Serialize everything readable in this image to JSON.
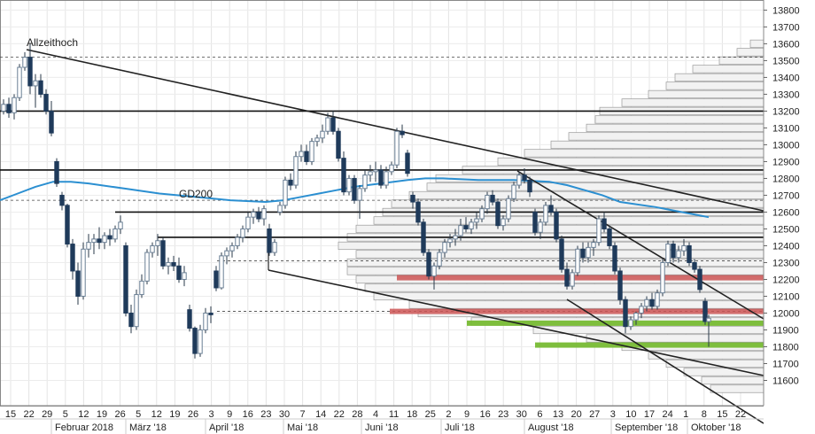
{
  "chart_data": {
    "type": "candlestick",
    "y_axis": {
      "ylim": [
        11450,
        13860
      ],
      "ticks": [
        11600,
        11700,
        11800,
        11900,
        12000,
        12100,
        12200,
        12300,
        12400,
        12500,
        12600,
        12700,
        12800,
        12900,
        13000,
        13100,
        13200,
        13300,
        13400,
        13500,
        13600,
        13700,
        13800
      ]
    },
    "x_axis": {
      "day_ticks": [
        "15",
        "22",
        "29",
        "5",
        "12",
        "19",
        "26",
        "5",
        "12",
        "19",
        "26",
        "3",
        "9",
        "16",
        "23",
        "30",
        "7",
        "14",
        "22",
        "28",
        "4",
        "11",
        "18",
        "25",
        "2",
        "9",
        "16",
        "23",
        "30",
        "6",
        "13",
        "20",
        "27",
        "3",
        "10",
        "17",
        "24",
        "1",
        "8",
        "15",
        "22"
      ],
      "month_labels": [
        "Februar 2018",
        "März '18",
        "April '18",
        "Mai '18",
        "Juni '18",
        "Juli '18",
        "August '18",
        "September '18",
        "Oktober '18"
      ]
    },
    "annotations": [
      "Allzeithoch",
      "GD200"
    ],
    "horizontal_levels": [
      13200,
      12850,
      12600,
      12450
    ],
    "dashed_levels": [
      13520,
      12670,
      12310,
      12010
    ],
    "red_zones": [
      12210,
      12010
    ],
    "green_zones": [
      11940,
      11810
    ],
    "moving_average_gd200": [
      [
        0,
        12670
      ],
      [
        20,
        12710
      ],
      [
        40,
        12750
      ],
      [
        60,
        12780
      ],
      [
        80,
        12780
      ],
      [
        100,
        12770
      ],
      [
        140,
        12740
      ],
      [
        180,
        12710
      ],
      [
        220,
        12690
      ],
      [
        260,
        12670
      ],
      [
        300,
        12660
      ],
      [
        320,
        12670
      ],
      [
        340,
        12690
      ],
      [
        360,
        12710
      ],
      [
        380,
        12730
      ],
      [
        400,
        12750
      ],
      [
        430,
        12770
      ],
      [
        460,
        12790
      ],
      [
        480,
        12800
      ],
      [
        500,
        12800
      ],
      [
        540,
        12790
      ],
      [
        580,
        12790
      ],
      [
        620,
        12780
      ],
      [
        640,
        12760
      ],
      [
        680,
        12700
      ],
      [
        700,
        12660
      ],
      [
        740,
        12630
      ],
      [
        770,
        12600
      ],
      [
        800,
        12570
      ]
    ],
    "candles": [
      [
        4,
        13200,
        13270,
        13180,
        13240
      ],
      [
        10,
        13240,
        13280,
        13160,
        13190
      ],
      [
        16,
        13190,
        13300,
        13150,
        13280
      ],
      [
        22,
        13280,
        13480,
        13260,
        13460
      ],
      [
        28,
        13460,
        13550,
        13440,
        13520
      ],
      [
        34,
        13520,
        13600,
        13300,
        13350
      ],
      [
        40,
        13350,
        13420,
        13220,
        13380
      ],
      [
        46,
        13380,
        13420,
        13280,
        13300
      ],
      [
        52,
        13300,
        13330,
        13180,
        13200
      ],
      [
        58,
        13200,
        13260,
        13050,
        13070
      ],
      [
        64,
        12900,
        12920,
        12750,
        12770
      ],
      [
        70,
        12700,
        12720,
        12610,
        12640
      ],
      [
        76,
        12640,
        12650,
        12390,
        12410
      ],
      [
        82,
        12410,
        12440,
        12200,
        12250
      ],
      [
        88,
        12250,
        12300,
        12050,
        12100
      ],
      [
        94,
        12100,
        12420,
        12080,
        12380
      ],
      [
        100,
        12380,
        12470,
        12330,
        12420
      ],
      [
        106,
        12420,
        12470,
        12350,
        12440
      ],
      [
        112,
        12440,
        12510,
        12380,
        12420
      ],
      [
        118,
        12420,
        12480,
        12380,
        12460
      ],
      [
        124,
        12460,
        12500,
        12400,
        12440
      ],
      [
        130,
        12440,
        12520,
        12420,
        12500
      ],
      [
        136,
        12500,
        12580,
        12470,
        12540
      ],
      [
        142,
        12400,
        12420,
        11980,
        12000
      ],
      [
        148,
        12000,
        12050,
        11880,
        11920
      ],
      [
        154,
        11920,
        12140,
        11900,
        12110
      ],
      [
        160,
        12110,
        12230,
        12090,
        12190
      ],
      [
        166,
        12190,
        12380,
        12170,
        12360
      ],
      [
        172,
        12360,
        12420,
        12330,
        12400
      ],
      [
        178,
        12400,
        12470,
        12340,
        12430
      ],
      [
        184,
        12430,
        12450,
        12260,
        12280
      ],
      [
        190,
        12280,
        12330,
        12230,
        12300
      ],
      [
        196,
        12300,
        12340,
        12250,
        12280
      ],
      [
        202,
        12280,
        12330,
        12180,
        12200
      ],
      [
        208,
        12200,
        12280,
        12160,
        12240
      ],
      [
        214,
        12020,
        12050,
        11890,
        11910
      ],
      [
        220,
        11910,
        11920,
        11730,
        11760
      ],
      [
        226,
        11760,
        11930,
        11740,
        11900
      ],
      [
        232,
        11900,
        12030,
        11880,
        12000
      ],
      [
        238,
        12000,
        12040,
        11940,
        11990
      ],
      [
        244,
        12250,
        12280,
        12130,
        12150
      ],
      [
        250,
        12150,
        12360,
        12140,
        12340
      ],
      [
        256,
        12340,
        12390,
        12290,
        12370
      ],
      [
        262,
        12370,
        12420,
        12330,
        12400
      ],
      [
        268,
        12400,
        12470,
        12380,
        12450
      ],
      [
        274,
        12450,
        12520,
        12420,
        12500
      ],
      [
        280,
        12500,
        12600,
        12480,
        12570
      ],
      [
        286,
        12570,
        12620,
        12530,
        12600
      ],
      [
        292,
        12600,
        12630,
        12540,
        12560
      ],
      [
        298,
        12560,
        12640,
        12520,
        12620
      ],
      [
        304,
        12500,
        12530,
        12340,
        12360
      ],
      [
        310,
        12360,
        12440,
        12340,
        12420
      ],
      [
        316,
        12600,
        12660,
        12580,
        12640
      ],
      [
        322,
        12640,
        12810,
        12620,
        12790
      ],
      [
        328,
        12790,
        12830,
        12730,
        12760
      ],
      [
        334,
        12760,
        12960,
        12740,
        12930
      ],
      [
        340,
        12930,
        13000,
        12900,
        12960
      ],
      [
        346,
        12960,
        13000,
        12880,
        12900
      ],
      [
        352,
        12900,
        13040,
        12880,
        13020
      ],
      [
        358,
        13020,
        13060,
        12990,
        13040
      ],
      [
        364,
        13040,
        13120,
        13010,
        13080
      ],
      [
        370,
        13080,
        13190,
        13060,
        13160
      ],
      [
        376,
        13160,
        13200,
        13060,
        13080
      ],
      [
        382,
        13080,
        13100,
        12900,
        12920
      ],
      [
        388,
        12920,
        12960,
        12700,
        12720
      ],
      [
        394,
        12720,
        12820,
        12700,
        12800
      ],
      [
        400,
        12800,
        12820,
        12650,
        12670
      ],
      [
        406,
        12670,
        12760,
        12560,
        12740
      ],
      [
        412,
        12740,
        12850,
        12720,
        12820
      ],
      [
        418,
        12820,
        12880,
        12780,
        12840
      ],
      [
        424,
        12840,
        12900,
        12780,
        12850
      ],
      [
        430,
        12850,
        12880,
        12740,
        12760
      ],
      [
        436,
        12760,
        12870,
        12740,
        12840
      ],
      [
        442,
        12840,
        12900,
        12820,
        12880
      ],
      [
        448,
        12880,
        13100,
        12860,
        13080
      ],
      [
        454,
        13080,
        13120,
        13040,
        13060
      ],
      [
        460,
        12950,
        12970,
        12810,
        12830
      ],
      [
        466,
        12700,
        12720,
        12620,
        12660
      ],
      [
        472,
        12660,
        12680,
        12520,
        12540
      ],
      [
        478,
        12540,
        12560,
        12340,
        12360
      ],
      [
        484,
        12360,
        12380,
        12200,
        12220
      ],
      [
        490,
        12220,
        12300,
        12140,
        12280
      ],
      [
        496,
        12280,
        12380,
        12260,
        12360
      ],
      [
        502,
        12360,
        12440,
        12330,
        12420
      ],
      [
        508,
        12420,
        12470,
        12390,
        12440
      ],
      [
        514,
        12440,
        12500,
        12400,
        12460
      ],
      [
        520,
        12460,
        12560,
        12430,
        12520
      ],
      [
        526,
        12520,
        12570,
        12480,
        12500
      ],
      [
        532,
        12500,
        12560,
        12470,
        12540
      ],
      [
        538,
        12540,
        12600,
        12500,
        12560
      ],
      [
        544,
        12560,
        12640,
        12540,
        12620
      ],
      [
        550,
        12620,
        12720,
        12590,
        12700
      ],
      [
        556,
        12700,
        12730,
        12640,
        12660
      ],
      [
        562,
        12660,
        12680,
        12500,
        12520
      ],
      [
        568,
        12520,
        12580,
        12490,
        12560
      ],
      [
        574,
        12560,
        12700,
        12540,
        12680
      ],
      [
        580,
        12680,
        12780,
        12660,
        12760
      ],
      [
        586,
        12760,
        12840,
        12740,
        12820
      ],
      [
        592,
        12820,
        12860,
        12770,
        12790
      ],
      [
        598,
        12790,
        12810,
        12690,
        12720
      ],
      [
        604,
        12600,
        12620,
        12460,
        12480
      ],
      [
        610,
        12480,
        12560,
        12440,
        12540
      ],
      [
        616,
        12540,
        12660,
        12520,
        12640
      ],
      [
        622,
        12640,
        12700,
        12580,
        12600
      ],
      [
        628,
        12600,
        12620,
        12420,
        12440
      ],
      [
        634,
        12440,
        12460,
        12240,
        12260
      ],
      [
        640,
        12260,
        12300,
        12140,
        12160
      ],
      [
        646,
        12160,
        12260,
        12140,
        12240
      ],
      [
        652,
        12240,
        12400,
        12220,
        12380
      ],
      [
        658,
        12380,
        12420,
        12300,
        12330
      ],
      [
        664,
        12330,
        12420,
        12300,
        12390
      ],
      [
        670,
        12390,
        12440,
        12340,
        12420
      ],
      [
        676,
        12420,
        12580,
        12400,
        12560
      ],
      [
        682,
        12560,
        12600,
        12480,
        12500
      ],
      [
        688,
        12500,
        12520,
        12380,
        12400
      ],
      [
        694,
        12400,
        12420,
        12230,
        12250
      ],
      [
        700,
        12250,
        12270,
        12050,
        12080
      ],
      [
        706,
        12080,
        12100,
        11880,
        11920
      ],
      [
        712,
        11920,
        11980,
        11900,
        11960
      ],
      [
        718,
        11960,
        12010,
        11930,
        12000
      ],
      [
        724,
        12000,
        12060,
        11970,
        12040
      ],
      [
        730,
        12040,
        12100,
        12010,
        12080
      ],
      [
        736,
        12080,
        12120,
        12020,
        12040
      ],
      [
        742,
        12040,
        12140,
        12020,
        12120
      ],
      [
        748,
        12120,
        12320,
        12100,
        12300
      ],
      [
        754,
        12300,
        12430,
        12280,
        12410
      ],
      [
        760,
        12410,
        12430,
        12300,
        12330
      ],
      [
        766,
        12330,
        12400,
        12300,
        12370
      ],
      [
        772,
        12370,
        12440,
        12340,
        12400
      ],
      [
        778,
        12400,
        12420,
        12280,
        12300
      ],
      [
        784,
        12300,
        12320,
        12240,
        12260
      ],
      [
        790,
        12260,
        12280,
        12120,
        12140
      ],
      [
        796,
        12070,
        12090,
        11930,
        11950
      ],
      [
        800,
        11950,
        11990,
        11800,
        11970
      ]
    ],
    "volume_profile": [
      [
        11550,
        60
      ],
      [
        11600,
        70
      ],
      [
        11650,
        90
      ],
      [
        11700,
        110
      ],
      [
        11750,
        130
      ],
      [
        11800,
        160
      ],
      [
        11850,
        200
      ],
      [
        11900,
        260
      ],
      [
        11950,
        330
      ],
      [
        12000,
        390
      ],
      [
        12050,
        400
      ],
      [
        12100,
        440
      ],
      [
        12150,
        450
      ],
      [
        12200,
        460
      ],
      [
        12250,
        470
      ],
      [
        12300,
        470
      ],
      [
        12350,
        460
      ],
      [
        12400,
        480
      ],
      [
        12450,
        470
      ],
      [
        12500,
        460
      ],
      [
        12550,
        440
      ],
      [
        12600,
        430
      ],
      [
        12650,
        420
      ],
      [
        12700,
        400
      ],
      [
        12750,
        380
      ],
      [
        12800,
        370
      ],
      [
        12850,
        340
      ],
      [
        12900,
        300
      ],
      [
        12950,
        270
      ],
      [
        13000,
        240
      ],
      [
        13050,
        220
      ],
      [
        13100,
        200
      ],
      [
        13150,
        190
      ],
      [
        13200,
        185
      ],
      [
        13250,
        160
      ],
      [
        13300,
        130
      ],
      [
        13350,
        110
      ],
      [
        13400,
        100
      ],
      [
        13450,
        80
      ],
      [
        13500,
        50
      ],
      [
        13550,
        30
      ],
      [
        13600,
        15
      ]
    ]
  }
}
